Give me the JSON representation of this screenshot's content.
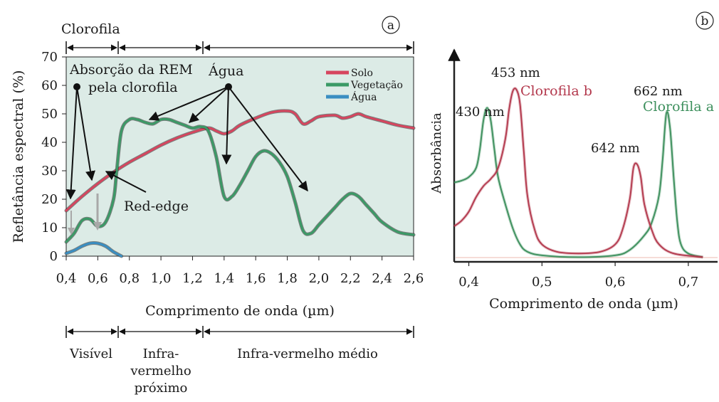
{
  "panel_a": {
    "label": "a",
    "top_band": {
      "label": "Clorofila"
    },
    "annotations": {
      "absorption_line1": "Absorção da REM",
      "absorption_line2": "pela clorofila",
      "water": "Água",
      "red_edge": "Red-edge"
    },
    "bottom_bands": [
      {
        "lines": [
          "Visível"
        ]
      },
      {
        "lines": [
          "Infra-",
          "vermelho",
          "próximo"
        ]
      },
      {
        "lines": [
          "Infra-vermelho médio"
        ]
      }
    ]
  },
  "panel_b": {
    "label": "b",
    "peak_labels": {
      "p430": "430 nm",
      "p453": "453 nm",
      "p642": "642 nm",
      "p662": "662 nm"
    },
    "colors": {
      "chlorophyll_a": "#3c8f5c",
      "chlorophyll_b": "#b3384c"
    }
  },
  "chart_data": [
    {
      "type": "line",
      "title": "",
      "xlabel": "Comprimento de onda (µm)",
      "ylabel": "Refletância espectral (%)",
      "xlim": [
        0.4,
        2.6
      ],
      "ylim": [
        0,
        70
      ],
      "xticks": [
        "0,4",
        "0,6",
        "0,8",
        "1,0",
        "1,2",
        "1,4",
        "1,6",
        "1,8",
        "2,0",
        "2,2",
        "2,4",
        "2,6"
      ],
      "yticks": [
        "0",
        "10",
        "20",
        "30",
        "40",
        "50",
        "60",
        "70"
      ],
      "grid": false,
      "legend_position": "top-right",
      "background": "#dcebe6",
      "series": [
        {
          "name": "Solo",
          "color": "#d6455e",
          "x": [
            0.4,
            0.5,
            0.6,
            0.7,
            0.8,
            0.9,
            1.0,
            1.1,
            1.2,
            1.3,
            1.35,
            1.4,
            1.45,
            1.5,
            1.6,
            1.7,
            1.8,
            1.85,
            1.9,
            1.95,
            2.0,
            2.1,
            2.15,
            2.2,
            2.25,
            2.3,
            2.4,
            2.5,
            2.6
          ],
          "y": [
            16,
            21,
            25.5,
            29.5,
            33,
            36,
            39,
            41.5,
            43.5,
            45,
            44,
            43,
            44,
            46,
            48.5,
            50.5,
            51,
            50,
            46.5,
            47.5,
            49,
            49.5,
            48.5,
            49,
            50,
            49,
            47.5,
            46,
            45
          ]
        },
        {
          "name": "Vegetação",
          "color": "#3b9a66",
          "x": [
            0.4,
            0.45,
            0.5,
            0.55,
            0.6,
            0.65,
            0.7,
            0.72,
            0.75,
            0.8,
            0.85,
            0.9,
            0.95,
            1.0,
            1.05,
            1.1,
            1.15,
            1.2,
            1.25,
            1.3,
            1.35,
            1.4,
            1.45,
            1.5,
            1.55,
            1.6,
            1.65,
            1.7,
            1.75,
            1.8,
            1.85,
            1.9,
            1.95,
            2.0,
            2.05,
            2.1,
            2.15,
            2.2,
            2.25,
            2.3,
            2.35,
            2.4,
            2.5,
            2.6
          ],
          "y": [
            5,
            8,
            12.5,
            13,
            10.5,
            12,
            20,
            30,
            44,
            48,
            48,
            47,
            46.5,
            48,
            48,
            47,
            46,
            45,
            45.5,
            44,
            35,
            21,
            21,
            25,
            30,
            35,
            37,
            36,
            33,
            28,
            19,
            9,
            8,
            11,
            14,
            17,
            20,
            22,
            21,
            18,
            15,
            12,
            8.5,
            7.5
          ]
        },
        {
          "name": "Água",
          "color": "#3a8ec2",
          "x": [
            0.4,
            0.45,
            0.5,
            0.55,
            0.6,
            0.65,
            0.7,
            0.75
          ],
          "y": [
            1,
            2,
            3.5,
            4.5,
            4.5,
            3.5,
            1.5,
            0
          ]
        }
      ]
    },
    {
      "type": "line",
      "title": "",
      "xlabel": "Comprimento de onda (µm)",
      "ylabel": "Absorbância",
      "xlim": [
        0.38,
        0.74
      ],
      "ylim": [
        0,
        1
      ],
      "xticks": [
        "0,4",
        "0,5",
        "0,6",
        "0,7"
      ],
      "xtick_values": [
        0.4,
        0.5,
        0.6,
        0.7
      ],
      "grid": false,
      "series": [
        {
          "name": "Clorofila a",
          "color": "#3c8f5c",
          "x": [
            0.38,
            0.39,
            0.4,
            0.41,
            0.415,
            0.42,
            0.425,
            0.43,
            0.435,
            0.44,
            0.45,
            0.46,
            0.47,
            0.48,
            0.5,
            0.55,
            0.6,
            0.62,
            0.64,
            0.65,
            0.66,
            0.665,
            0.67,
            0.675,
            0.68,
            0.685,
            0.69,
            0.7,
            0.72
          ],
          "y": [
            0.42,
            0.43,
            0.45,
            0.5,
            0.6,
            0.76,
            0.83,
            0.76,
            0.6,
            0.45,
            0.3,
            0.17,
            0.08,
            0.04,
            0.02,
            0.01,
            0.02,
            0.05,
            0.13,
            0.2,
            0.35,
            0.55,
            0.8,
            0.72,
            0.45,
            0.2,
            0.08,
            0.03,
            0.01
          ]
        },
        {
          "name": "Clorofila b",
          "color": "#b3384c",
          "x": [
            0.38,
            0.39,
            0.4,
            0.41,
            0.42,
            0.43,
            0.44,
            0.45,
            0.455,
            0.46,
            0.465,
            0.47,
            0.475,
            0.48,
            0.49,
            0.5,
            0.52,
            0.55,
            0.58,
            0.6,
            0.61,
            0.62,
            0.625,
            0.63,
            0.635,
            0.64,
            0.65,
            0.66,
            0.68,
            0.72
          ],
          "y": [
            0.18,
            0.21,
            0.26,
            0.34,
            0.4,
            0.44,
            0.5,
            0.66,
            0.82,
            0.92,
            0.93,
            0.85,
            0.6,
            0.35,
            0.16,
            0.08,
            0.04,
            0.03,
            0.04,
            0.08,
            0.16,
            0.33,
            0.5,
            0.52,
            0.45,
            0.3,
            0.16,
            0.08,
            0.03,
            0.01
          ]
        }
      ]
    }
  ]
}
